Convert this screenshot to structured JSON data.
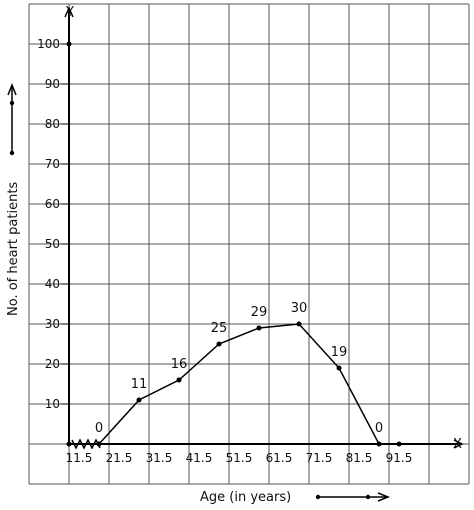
{
  "chart_data": {
    "type": "line",
    "title": "",
    "xlabel": "Age (in years)",
    "ylabel": "No. of heart patients",
    "x_axis_letter": "X",
    "y_axis_letter": "Y",
    "x_ticks": [
      "11.5",
      "21.5",
      "31.5",
      "41.5",
      "51.5",
      "61.5",
      "71.5",
      "81.5",
      "91.5"
    ],
    "y_ticks": [
      "10",
      "20",
      "30",
      "40",
      "50",
      "60",
      "70",
      "80",
      "90",
      "100"
    ],
    "ylim": [
      0,
      100
    ],
    "grid": true,
    "axis_break": true,
    "series": [
      {
        "x": [
          16.5,
          26.5,
          36.5,
          46.5,
          56.5,
          66.5,
          76.5,
          86.5
        ],
        "values": [
          0,
          11,
          16,
          25,
          29,
          30,
          19,
          0
        ],
        "labels": [
          "0",
          "11",
          "16",
          "25",
          "29",
          "30",
          "19",
          "0"
        ]
      }
    ]
  }
}
